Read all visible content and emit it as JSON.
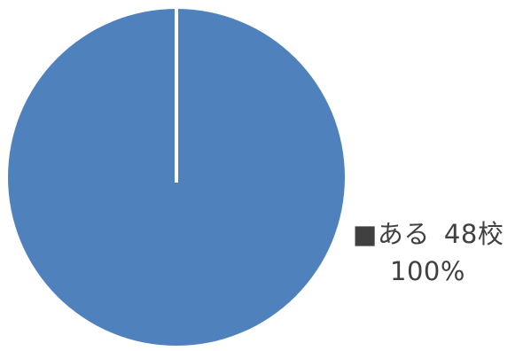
{
  "chart_data": {
    "type": "pie",
    "categories": [
      "ある"
    ],
    "values": [
      48
    ],
    "value_unit": "校",
    "percentages": [
      "100%"
    ],
    "colors": [
      "#4f81bd"
    ],
    "slice_label": {
      "marker": "■",
      "category": "ある",
      "value_text": "48校",
      "percent_text": "100%"
    }
  }
}
